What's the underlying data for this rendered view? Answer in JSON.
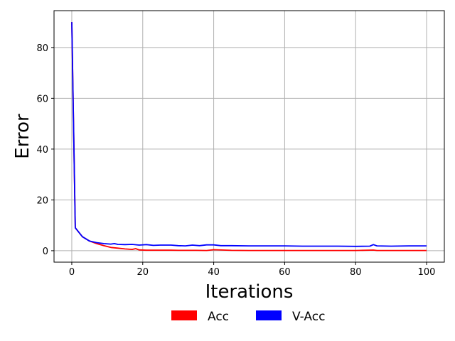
{
  "chart_data": {
    "type": "line",
    "title": "",
    "xlabel": "Iterations",
    "ylabel": "Error",
    "xlim": [
      -5,
      105
    ],
    "ylim": [
      -4.5,
      94.5
    ],
    "xticks": [
      0,
      20,
      40,
      60,
      80,
      100
    ],
    "yticks": [
      0,
      20,
      40,
      60,
      80
    ],
    "grid": true,
    "legend_position": "bottom-center",
    "series": [
      {
        "name": "Acc",
        "color": "#ff0000",
        "x": [
          0,
          1,
          3,
          5,
          7,
          9,
          11,
          13,
          15,
          17,
          18,
          19,
          21,
          23,
          25,
          28,
          30,
          35,
          38,
          40,
          45,
          50,
          60,
          70,
          80,
          85,
          86,
          90,
          95,
          100
        ],
        "y": [
          90,
          9,
          5.5,
          3.8,
          2.8,
          2.0,
          1.3,
          1.0,
          0.7,
          0.5,
          0.8,
          0.3,
          0.2,
          0.2,
          0.2,
          0.2,
          0.15,
          0.15,
          0.1,
          0.4,
          0.15,
          0.1,
          0.1,
          0.1,
          0.1,
          0.25,
          0.1,
          0.1,
          0.1,
          0.1
        ]
      },
      {
        "name": "V-Acc",
        "color": "#0000ff",
        "x": [
          0,
          1,
          3,
          5,
          7,
          9,
          11,
          12,
          13,
          15,
          17,
          19,
          21,
          23,
          25,
          28,
          30,
          32,
          34,
          36,
          38,
          40,
          42,
          45,
          50,
          55,
          60,
          65,
          70,
          75,
          80,
          84,
          85,
          86,
          90,
          95,
          100
        ],
        "y": [
          90,
          9,
          5.5,
          3.8,
          3.2,
          2.8,
          2.6,
          2.8,
          2.5,
          2.4,
          2.5,
          2.2,
          2.4,
          2.1,
          2.2,
          2.2,
          2.0,
          1.9,
          2.2,
          2.0,
          2.3,
          2.3,
          2.0,
          2.0,
          1.9,
          1.9,
          1.9,
          1.8,
          1.8,
          1.8,
          1.7,
          1.8,
          2.4,
          1.9,
          1.8,
          1.9,
          1.9
        ]
      }
    ]
  }
}
